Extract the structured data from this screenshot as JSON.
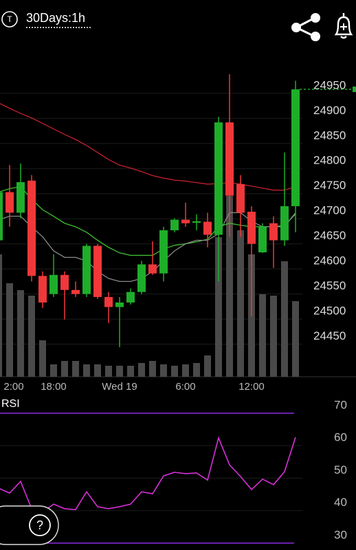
{
  "header": {
    "symbol_icon": "T",
    "title": "30Days:1h"
  },
  "help_button": "?",
  "chart_data": [
    {
      "type": "candlestick",
      "categories": [
        "2:00",
        null,
        null,
        null,
        null,
        "18:00",
        null,
        null,
        null,
        null,
        null,
        "Wed 19",
        null,
        null,
        null,
        null,
        null,
        "6:00",
        null,
        null,
        null,
        null,
        null,
        "12:00",
        null,
        null,
        null,
        null
      ],
      "open": [
        24642,
        24738,
        24697,
        24761,
        24571,
        24535,
        24573,
        24543,
        24535,
        24631,
        24529,
        24509,
        24518,
        24539,
        24594,
        24576,
        24662,
        24683,
        24677,
        24679,
        24653,
        24877,
        24754,
        24699,
        24618,
        24676,
        24642,
        24710
      ],
      "high": [
        24745,
        24792,
        24795,
        24772,
        24580,
        24614,
        24580,
        24560,
        24635,
        24635,
        24539,
        24529,
        24546,
        24601,
        24640,
        24669,
        24686,
        24717,
        24694,
        24697,
        24888,
        24973,
        24772,
        24710,
        24676,
        24690,
        24817,
        24960
      ],
      "low": [
        24635,
        24669,
        24686,
        24560,
        24507,
        24529,
        24484,
        24529,
        24529,
        24525,
        24477,
        24429,
        24514,
        24535,
        24573,
        24560,
        24658,
        24669,
        24662,
        24628,
        24560,
        24649,
        24649,
        24491,
        24617,
        24587,
        24631,
        24658
      ],
      "close": [
        24738,
        24697,
        24758,
        24571,
        24518,
        24573,
        24543,
        24535,
        24631,
        24529,
        24509,
        24518,
        24539,
        24594,
        24576,
        24662,
        24683,
        24676,
        24680,
        24653,
        24877,
        24731,
        24697,
        24635,
        24669,
        24642,
        24710,
        24943
      ],
      "volume": [
        178,
        136,
        126,
        118,
        53,
        18,
        23,
        23,
        18,
        18,
        16,
        16,
        16,
        20,
        23,
        18,
        16,
        18,
        20,
        31,
        203,
        263,
        213,
        178,
        120,
        118,
        168,
        110
      ],
      "up_color": "#1fae2a",
      "down_color": "#f0383a",
      "volume_color": "#4a4a4a",
      "moving_averages": [
        {
          "color": "#c4202e",
          "values": [
            24916,
            24905,
            24895,
            24886,
            24875,
            24864,
            24853,
            24843,
            24831,
            24817,
            24803,
            24792,
            24786,
            24779,
            24771,
            24766,
            24762,
            24760,
            24757,
            24754,
            24755,
            24757,
            24754,
            24750,
            24746,
            24742,
            24742,
            24749
          ]
        },
        {
          "color": "#3fbf2f",
          "values": [
            24738,
            24745,
            24749,
            24724,
            24703,
            24690,
            24676,
            24669,
            24658,
            24642,
            24628,
            24617,
            24612,
            24612,
            24612,
            24625,
            24632,
            24635,
            24639,
            24644,
            24669,
            24676,
            24672,
            24669,
            24669,
            24669,
            24672,
            24694
          ]
        },
        {
          "color": "#8a8a8a",
          "values": [
            24683,
            24690,
            24690,
            24669,
            24649,
            24621,
            24608,
            24608,
            24601,
            24580,
            24566,
            24560,
            24560,
            24566,
            24580,
            24601,
            24621,
            24635,
            24642,
            24642,
            24655,
            24697,
            24697,
            24680,
            24669,
            24669,
            24669,
            24697
          ]
        }
      ],
      "ylim": [
        24370,
        24984
      ],
      "yticks": [
        24450,
        24500,
        24550,
        24600,
        24650,
        24700,
        24750,
        24800,
        24850,
        24900,
        24950
      ],
      "grid": true
    },
    {
      "type": "line",
      "title": "RSI",
      "color": "#d630d6",
      "values": [
        46.9,
        45.4,
        49.0,
        40.6,
        39.5,
        42.0,
        40.6,
        40.3,
        45.8,
        41.2,
        40.6,
        41.2,
        42.0,
        45.8,
        45.2,
        50.7,
        51.8,
        51.4,
        51.6,
        49.4,
        62.4,
        54.1,
        50.5,
        46.5,
        49.7,
        48.0,
        52.0,
        62.6
      ],
      "ylim": [
        30,
        70
      ],
      "yticks": [
        30,
        40,
        50,
        60,
        70
      ],
      "band_color": "#8a2be2"
    }
  ]
}
